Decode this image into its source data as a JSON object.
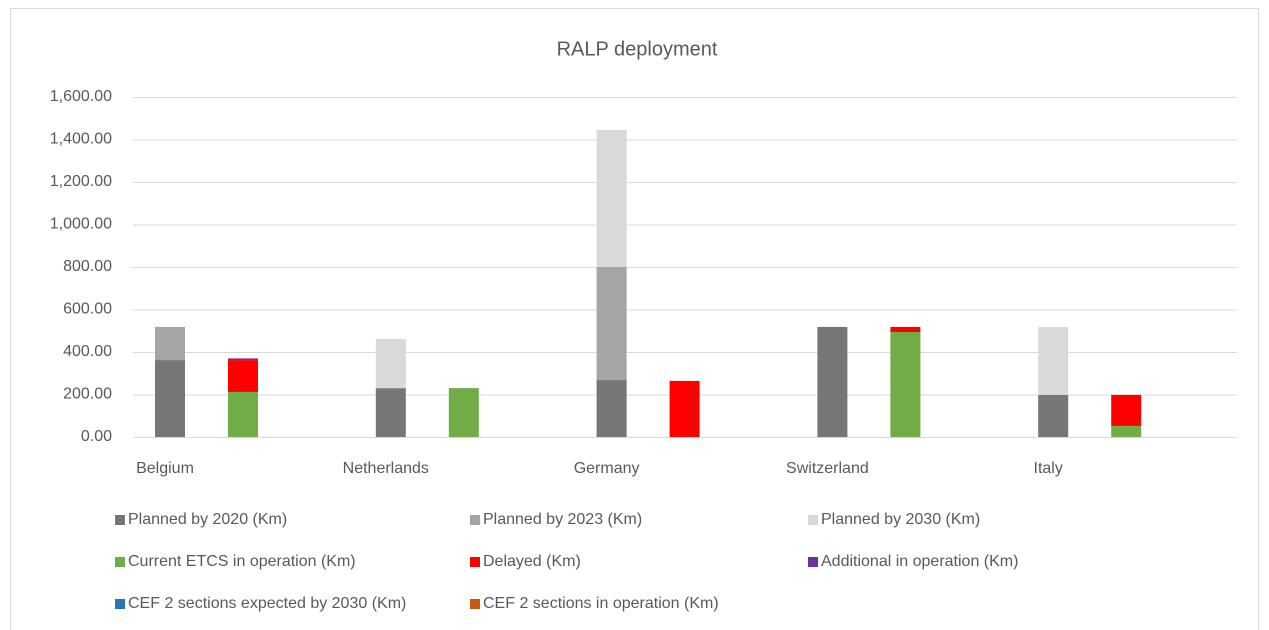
{
  "chart_data": {
    "type": "stacked-bar",
    "title": "RALP deployment",
    "categories": [
      "Belgium",
      "Netherlands",
      "Germany",
      "Switzerland",
      "Italy"
    ],
    "series": [
      {
        "name": "Planned by 2020 (Km)",
        "color": "#767676",
        "stack": 0,
        "values": [
          362,
          230,
          268,
          518,
          198
        ]
      },
      {
        "name": "Planned by 2023 (Km)",
        "color": "#a5a5a5",
        "stack": 0,
        "values": [
          156,
          0,
          532,
          0,
          0
        ]
      },
      {
        "name": "Planned by 2030 (Km)",
        "color": "#d9d9d9",
        "stack": 0,
        "values": [
          0,
          231,
          645,
          0,
          320
        ]
      },
      {
        "name": "Current ETCS in operation (Km)",
        "color": "#70ad47",
        "stack": 1,
        "values": [
          212,
          230,
          0,
          494,
          52
        ]
      },
      {
        "name": "Delayed (Km)",
        "color": "#ff0000",
        "stack": 1,
        "values": [
          150,
          0,
          264,
          24,
          146
        ]
      },
      {
        "name": "Additional in operation (Km)",
        "color": "#7030a0",
        "stack": 1,
        "values": [
          8,
          0,
          0,
          0,
          0
        ]
      },
      {
        "name": "CEF 2 sections expected by 2030  (Km)",
        "color": "#2e75b6",
        "stack": 2,
        "values": [
          0,
          0,
          0,
          0,
          0
        ]
      },
      {
        "name": "CEF 2 sections in operation (Km)",
        "color": "#c55a11",
        "stack": 2,
        "values": [
          0,
          0,
          0,
          0,
          0
        ]
      }
    ],
    "ylim": [
      0,
      1600
    ],
    "yticks": [
      {
        "value": 0,
        "label": "0.00"
      },
      {
        "value": 200,
        "label": "200.00"
      },
      {
        "value": 400,
        "label": "400.00"
      },
      {
        "value": 600,
        "label": "600.00"
      },
      {
        "value": 800,
        "label": "800.00"
      },
      {
        "value": 1000,
        "label": "1,000.00"
      },
      {
        "value": 1200,
        "label": "1,200.00"
      },
      {
        "value": 1400,
        "label": "1,400.00"
      },
      {
        "value": 1600,
        "label": "1,600.00"
      }
    ],
    "grid": true
  }
}
